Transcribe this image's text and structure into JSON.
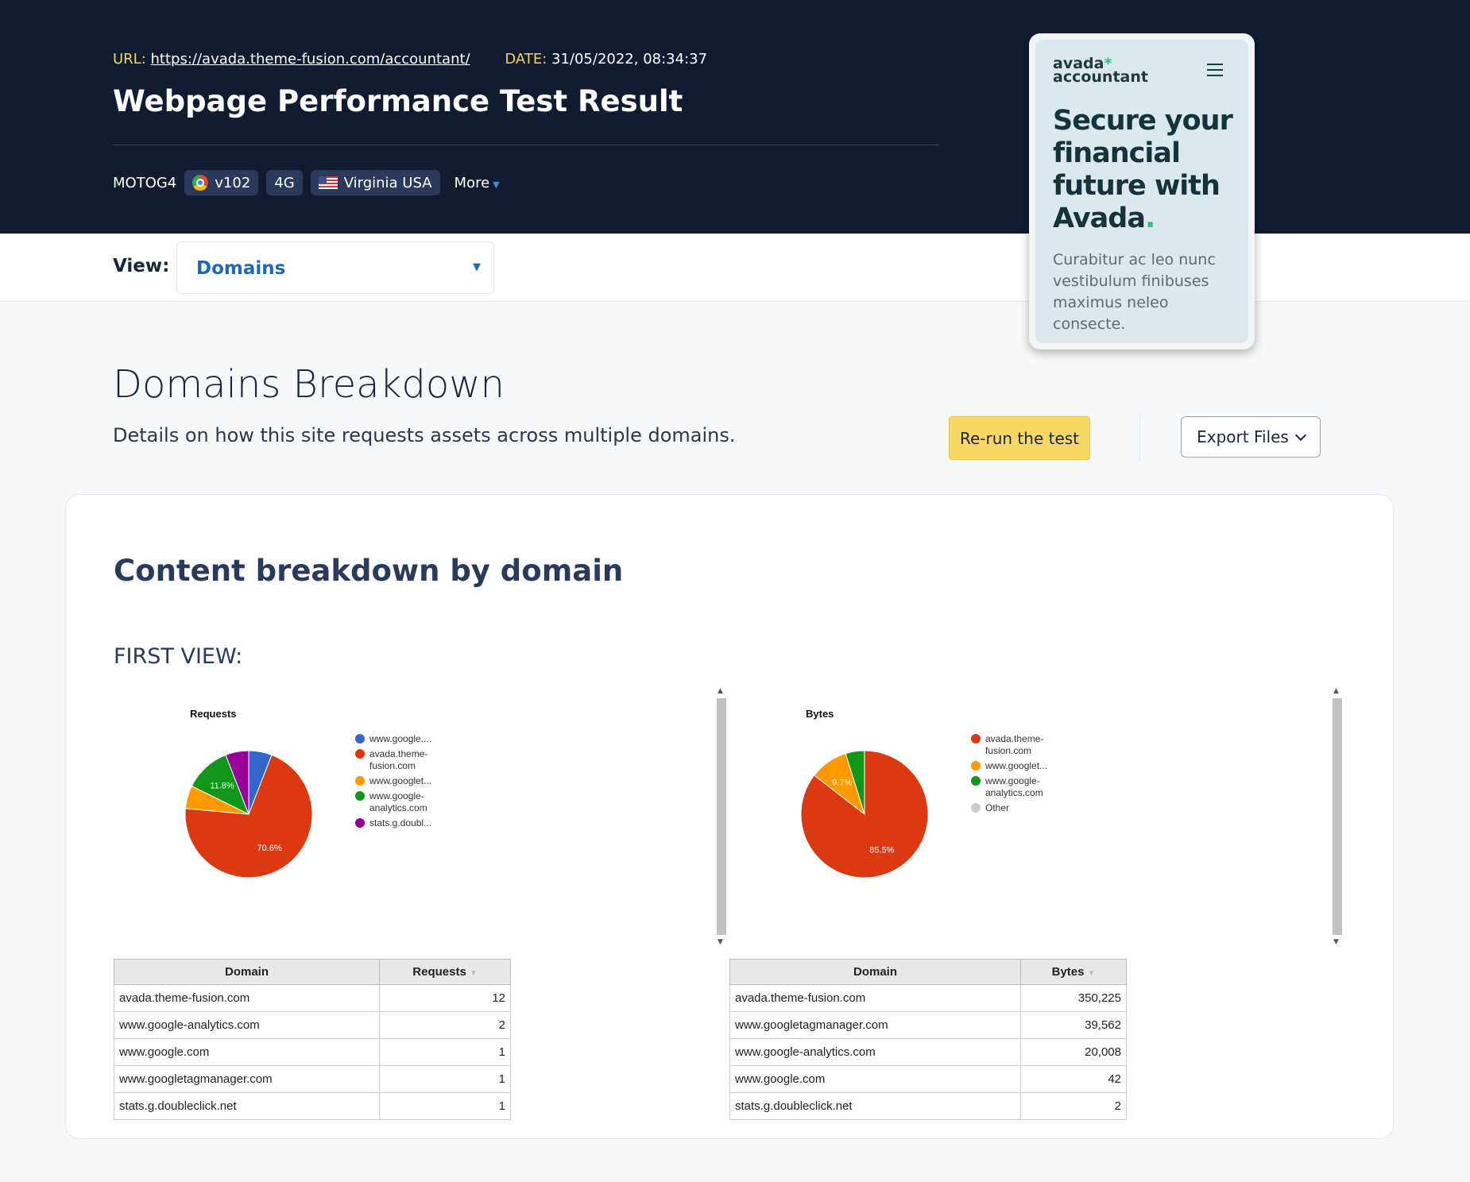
{
  "header": {
    "url_label": "URL:",
    "url": "https://avada.theme-fusion.com/accountant/",
    "date_label": "DATE:",
    "date": "31/05/2022, 08:34:37",
    "title": "Webpage Performance Test Result",
    "device": "MOTOG4",
    "browser": "v102",
    "connection": "4G",
    "location": "Virginia USA",
    "more": "More"
  },
  "view": {
    "label": "View:",
    "selected": "Domains"
  },
  "section": {
    "title": "Domains Breakdown",
    "subtitle": "Details on how this site requests assets across multiple domains.",
    "rerun": "Re-run the test",
    "export": "Export Files"
  },
  "card": {
    "title": "Content breakdown by domain",
    "first_view": "FIRST VIEW:"
  },
  "phone": {
    "brand_top": "avada",
    "brand_bottom": "accountant",
    "hero": "Secure your financial future with Avada",
    "hero_dot": ".",
    "sub": "Curabitur ac leo nunc vestibulum finibuses maximus neleo consecte."
  },
  "chart_data": [
    {
      "type": "pie",
      "title": "Requests",
      "slices": [
        {
          "label": "www.google....",
          "value": 5.9,
          "color": "#3366cc"
        },
        {
          "label": "avada.theme-fusion.com",
          "value": 70.6,
          "color": "#dc3912"
        },
        {
          "label": "www.googlet...",
          "value": 5.9,
          "color": "#ff9900"
        },
        {
          "label": "www.google-analytics.com",
          "value": 11.8,
          "color": "#109618"
        },
        {
          "label": "stats.g.doubl...",
          "value": 5.9,
          "color": "#990099"
        }
      ],
      "data_labels": [
        "11.8%",
        "70.6%"
      ],
      "legend": "right"
    },
    {
      "type": "pie",
      "title": "Bytes",
      "slices": [
        {
          "label": "avada.theme-fusion.com",
          "value": 85.5,
          "color": "#dc3912"
        },
        {
          "label": "www.googlet...",
          "value": 9.7,
          "color": "#ff9900"
        },
        {
          "label": "www.google-analytics.com",
          "value": 4.8,
          "color": "#109618"
        },
        {
          "label": "Other",
          "value": 0.01,
          "color": "#cccccc"
        }
      ],
      "data_labels": [
        "9.7%",
        "85.5%"
      ],
      "legend": "right"
    },
    {
      "type": "table",
      "columns": [
        "Domain",
        "Requests"
      ],
      "rows": [
        [
          "avada.theme-fusion.com",
          "12"
        ],
        [
          "www.google-analytics.com",
          "2"
        ],
        [
          "www.google.com",
          "1"
        ],
        [
          "www.googletagmanager.com",
          "1"
        ],
        [
          "stats.g.doubleclick.net",
          "1"
        ]
      ]
    },
    {
      "type": "table",
      "columns": [
        "Domain",
        "Bytes"
      ],
      "rows": [
        [
          "avada.theme-fusion.com",
          "350,225"
        ],
        [
          "www.googletagmanager.com",
          "39,562"
        ],
        [
          "www.google-analytics.com",
          "20,008"
        ],
        [
          "www.google.com",
          "42"
        ],
        [
          "stats.g.doubleclick.net",
          "2"
        ]
      ]
    }
  ]
}
